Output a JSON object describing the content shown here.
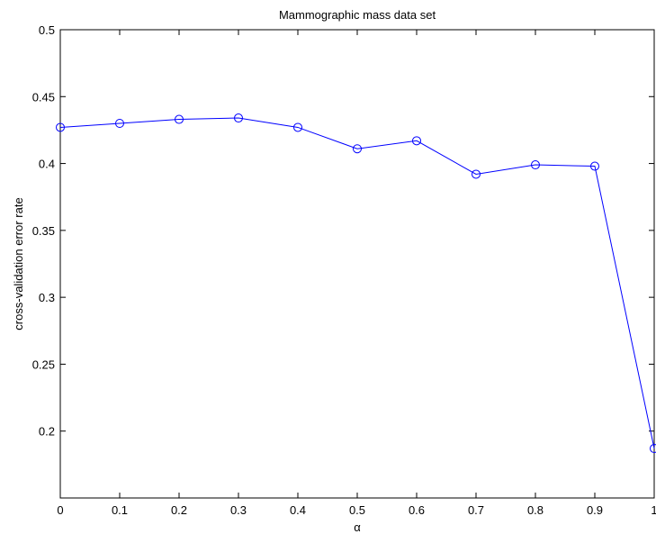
{
  "chart_data": {
    "type": "line",
    "title": "Mammographic mass data set",
    "xlabel": "α",
    "ylabel": "cross-validation error rate",
    "xlim": [
      0,
      1
    ],
    "ylim": [
      0.15,
      0.5
    ],
    "xticks": [
      0,
      0.1,
      0.2,
      0.3,
      0.4,
      0.5,
      0.6,
      0.7,
      0.8,
      0.9,
      1
    ],
    "xtick_labels": [
      "0",
      "0.1",
      "0.2",
      "0.3",
      "0.4",
      "0.5",
      "0.6",
      "0.7",
      "0.8",
      "0.9",
      "1"
    ],
    "yticks": [
      0.2,
      0.25,
      0.3,
      0.35,
      0.4,
      0.45,
      0.5
    ],
    "ytick_labels": [
      "0.2",
      "0.25",
      "0.3",
      "0.35",
      "0.4",
      "0.45",
      "0.5"
    ],
    "grid": false,
    "line_color": "#0000ff",
    "marker": "circle",
    "series": [
      {
        "x": [
          0,
          0.1,
          0.2,
          0.3,
          0.4,
          0.5,
          0.6,
          0.7,
          0.8,
          0.9,
          1
        ],
        "y": [
          0.427,
          0.43,
          0.433,
          0.434,
          0.427,
          0.411,
          0.417,
          0.392,
          0.399,
          0.398,
          0.187
        ]
      }
    ]
  }
}
